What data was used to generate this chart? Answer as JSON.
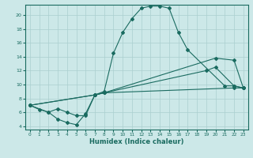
{
  "xlabel": "Humidex (Indice chaleur)",
  "ylabel": "",
  "xlim": [
    -0.5,
    23.5
  ],
  "ylim": [
    3.5,
    21.5
  ],
  "xticks": [
    0,
    1,
    2,
    3,
    4,
    5,
    6,
    7,
    8,
    9,
    10,
    11,
    12,
    13,
    14,
    15,
    16,
    17,
    18,
    19,
    20,
    21,
    22,
    23
  ],
  "yticks": [
    4,
    6,
    8,
    10,
    12,
    14,
    16,
    18,
    20
  ],
  "background_color": "#cce8e8",
  "line_color": "#1a6b60",
  "grid_color": "#aacfcf",
  "line1_x": [
    0,
    1,
    2,
    3,
    4,
    5,
    6,
    7,
    8,
    9,
    10,
    11,
    12,
    13,
    14,
    15,
    16,
    17,
    21,
    22,
    23
  ],
  "line1_y": [
    7,
    6.4,
    6.0,
    5.0,
    4.5,
    4.2,
    5.8,
    8.5,
    9.0,
    14.5,
    17.5,
    19.5,
    21.0,
    21.3,
    21.3,
    21.0,
    17.5,
    15.0,
    9.8,
    9.8,
    9.5
  ],
  "line2_x": [
    0,
    2,
    3,
    4,
    5,
    6,
    7,
    8,
    20,
    22,
    23
  ],
  "line2_y": [
    7,
    6.0,
    6.5,
    6.0,
    5.5,
    5.5,
    8.5,
    8.8,
    13.8,
    13.5,
    9.5
  ],
  "line3_x": [
    0,
    7,
    8,
    19,
    20,
    22,
    23
  ],
  "line3_y": [
    7,
    8.5,
    8.8,
    12.0,
    12.5,
    9.8,
    9.5
  ],
  "line4_x": [
    0,
    7,
    8,
    22,
    23
  ],
  "line4_y": [
    7,
    8.5,
    8.8,
    9.5,
    9.5
  ]
}
